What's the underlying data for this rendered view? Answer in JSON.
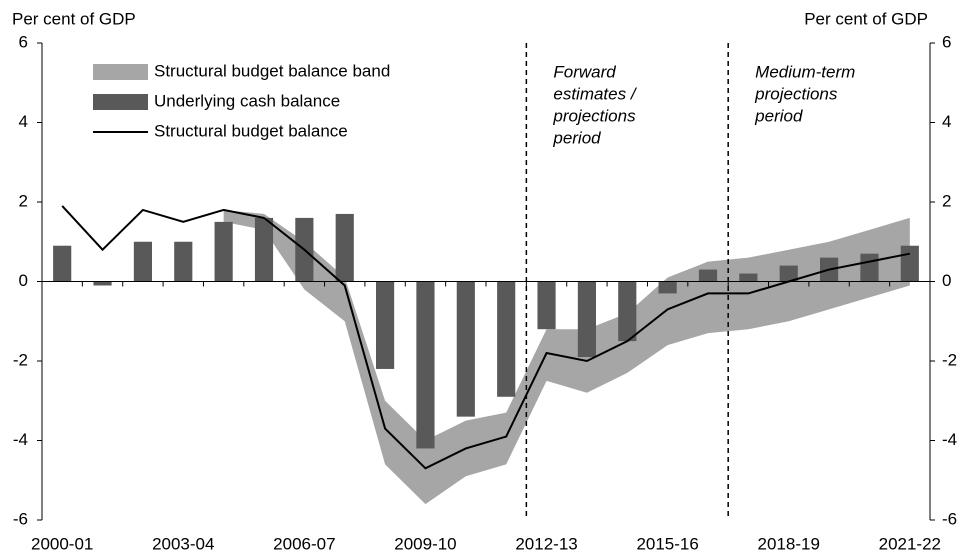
{
  "chart_data": {
    "type": "combo",
    "y_label": "Per cent of GDP",
    "y2_label": "Per cent of GDP",
    "categories": [
      "2000-01",
      null,
      null,
      "2003-04",
      null,
      null,
      "2006-07",
      null,
      null,
      "2009-10",
      null,
      null,
      "2012-13",
      null,
      null,
      "2015-16",
      null,
      null,
      "2018-19",
      null,
      null,
      "2021-22"
    ],
    "ylim": [
      -6,
      6
    ],
    "yticks": [
      -6,
      -4,
      -2,
      0,
      2,
      4,
      6
    ],
    "y2lim": [
      -6,
      6
    ],
    "y2ticks": [
      -6,
      -4,
      -2,
      0,
      2,
      4,
      6
    ],
    "series": [
      {
        "name": "Structural budget balance band",
        "type": "band",
        "color": "#a6a6a6",
        "lower": [
          null,
          null,
          null,
          null,
          1.5,
          1.3,
          -0.2,
          -1.0,
          -4.6,
          -5.6,
          -4.9,
          -4.6,
          -2.5,
          -2.8,
          -2.3,
          -1.6,
          -1.3,
          -1.2,
          -1.0,
          -0.7,
          -0.4,
          -0.1
        ],
        "upper": [
          null,
          null,
          null,
          null,
          1.8,
          1.7,
          1.0,
          0.1,
          -3.0,
          -4.0,
          -3.5,
          -3.3,
          -1.2,
          -1.2,
          -0.8,
          0.1,
          0.5,
          0.6,
          0.8,
          1.0,
          1.3,
          1.6
        ]
      },
      {
        "name": "Underlying cash balance",
        "type": "bar",
        "color": "#595959",
        "values": [
          0.9,
          -0.1,
          1.0,
          1.0,
          1.5,
          1.6,
          1.6,
          1.7,
          -2.2,
          -4.2,
          -3.4,
          -2.9,
          -1.2,
          -1.9,
          -1.5,
          -0.3,
          0.3,
          0.2,
          0.4,
          0.6,
          0.7,
          0.9
        ]
      },
      {
        "name": "Structural budget balance",
        "type": "line",
        "color": "#000000",
        "values": [
          1.9,
          0.8,
          1.8,
          1.5,
          1.8,
          1.6,
          0.8,
          -0.1,
          -3.7,
          -4.7,
          -4.2,
          -3.9,
          -1.8,
          -2.0,
          -1.5,
          -0.7,
          -0.3,
          -0.3,
          0.0,
          0.3,
          0.5,
          0.7
        ]
      }
    ],
    "dividers": [
      11.5,
      16.5
    ],
    "annotations": [
      {
        "lines": [
          "Forward",
          "estimates /",
          "projections",
          "period"
        ]
      },
      {
        "lines": [
          "Medium-term",
          "projections",
          "period"
        ]
      }
    ],
    "legend": "upper left"
  }
}
